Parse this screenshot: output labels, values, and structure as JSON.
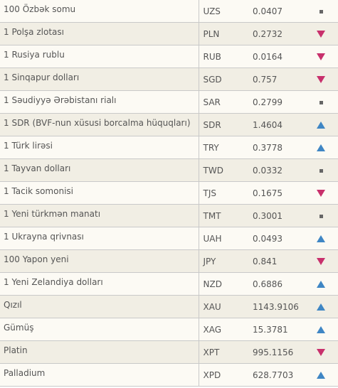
{
  "colors": {
    "up": "#3f86c4",
    "down": "#c8306c",
    "same": "#666666"
  },
  "rates": [
    {
      "name": "100 Özbək somu",
      "code": "UZS",
      "value": "0.0407",
      "trend": "same"
    },
    {
      "name": "1 Polşa zlotası",
      "code": "PLN",
      "value": "0.2732",
      "trend": "down"
    },
    {
      "name": "1 Rusiya rublu",
      "code": "RUB",
      "value": "0.0164",
      "trend": "down"
    },
    {
      "name": "1 Sinqapur dolları",
      "code": "SGD",
      "value": "0.757",
      "trend": "down"
    },
    {
      "name": "1 Səudiyyə Ərəbistanı rialı",
      "code": "SAR",
      "value": "0.2799",
      "trend": "same"
    },
    {
      "name": "1 SDR (BVF-nun xüsusi borcalma hüquqları)",
      "code": "SDR",
      "value": "1.4604",
      "trend": "up"
    },
    {
      "name": "1 Türk lirəsi",
      "code": "TRY",
      "value": "0.3778",
      "trend": "up"
    },
    {
      "name": "1 Tayvan dolları",
      "code": "TWD",
      "value": "0.0332",
      "trend": "same"
    },
    {
      "name": "1 Tacik somonisi",
      "code": "TJS",
      "value": "0.1675",
      "trend": "down"
    },
    {
      "name": "1 Yeni türkmən manatı",
      "code": "TMT",
      "value": "0.3001",
      "trend": "same"
    },
    {
      "name": "1 Ukrayna qrivnası",
      "code": "UAH",
      "value": "0.0493",
      "trend": "up"
    },
    {
      "name": "100 Yapon yeni",
      "code": "JPY",
      "value": "0.841",
      "trend": "down"
    },
    {
      "name": "1 Yeni Zelandiya dolları",
      "code": "NZD",
      "value": "0.6886",
      "trend": "up"
    },
    {
      "name": "Qızıl",
      "code": "XAU",
      "value": "1143.9106",
      "trend": "up"
    },
    {
      "name": "Gümüş",
      "code": "XAG",
      "value": "15.3781",
      "trend": "up"
    },
    {
      "name": "Platin",
      "code": "XPT",
      "value": "995.1156",
      "trend": "down"
    },
    {
      "name": "Palladium",
      "code": "XPD",
      "value": "628.7703",
      "trend": "up"
    }
  ]
}
